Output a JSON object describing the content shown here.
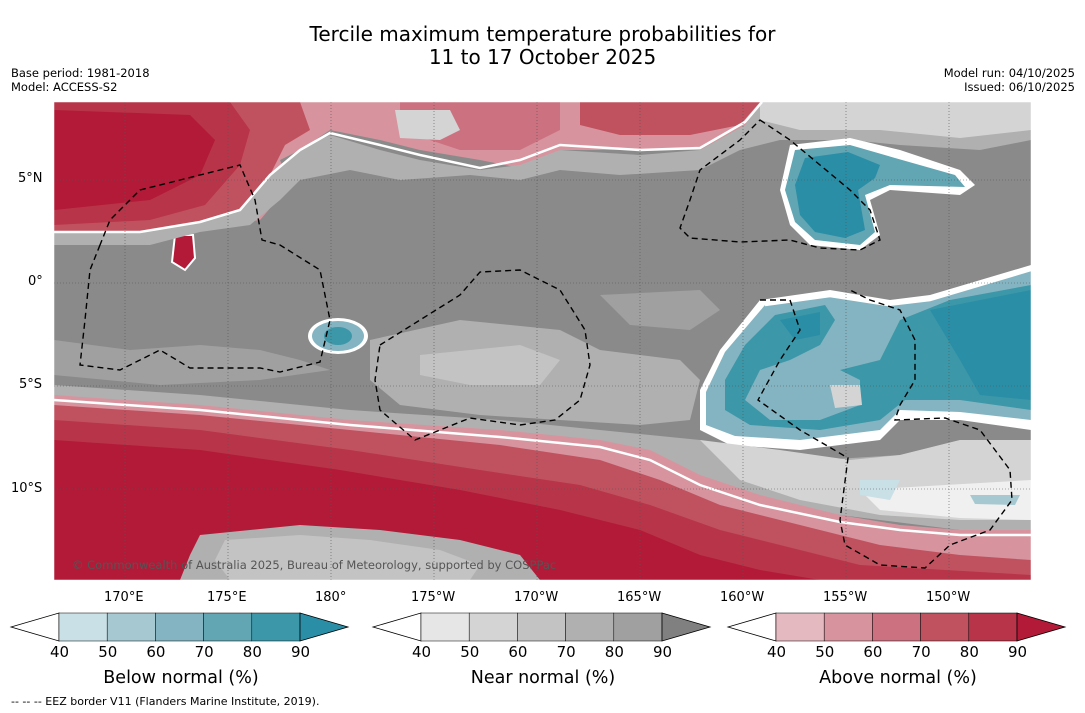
{
  "header": {
    "title_line1": "Tercile maximum temperature probabilities for",
    "title_line2": "11 to 17 October 2025",
    "base_period": "Base period: 1981-2018",
    "model": "Model: ACCESS-S2",
    "model_run": "Model run: 04/10/2025",
    "issued": "Issued: 06/10/2025"
  },
  "map": {
    "copyright": "© Commonwealth of Australia 2025, Bureau of Meteorology, supported by COSPPac",
    "lat_labels": [
      "5°N",
      "0°",
      "5°S",
      "10°S"
    ],
    "lon_labels": [
      "170°E",
      "175°E",
      "180°",
      "175°W",
      "170°W",
      "165°W",
      "160°W",
      "155°W",
      "150°W"
    ]
  },
  "colorbars": [
    {
      "title": "Below normal (%)",
      "ticks": [
        "40",
        "50",
        "60",
        "70",
        "80",
        "90"
      ],
      "colors": [
        "#ffffff",
        "#c8e0e6",
        "#a6c9d1",
        "#84b4c1",
        "#62a5b3",
        "#3c97a8",
        "#2a8ea6"
      ]
    },
    {
      "title": "Near normal (%)",
      "ticks": [
        "40",
        "50",
        "60",
        "70",
        "80",
        "90"
      ],
      "colors": [
        "#ffffff",
        "#e6e6e6",
        "#d4d4d4",
        "#c3c3c3",
        "#b0b0b0",
        "#a0a0a0",
        "#808080"
      ]
    },
    {
      "title": "Above normal (%)",
      "ticks": [
        "40",
        "50",
        "60",
        "70",
        "80",
        "90"
      ],
      "colors": [
        "#ffffff",
        "#e4b9bf",
        "#d7949e",
        "#cb717f",
        "#c0525f",
        "#b83448",
        "#b21a38"
      ]
    }
  ],
  "footer": "--  --  -- EEZ border V11 (Flanders Marine Institute, 2019)."
}
